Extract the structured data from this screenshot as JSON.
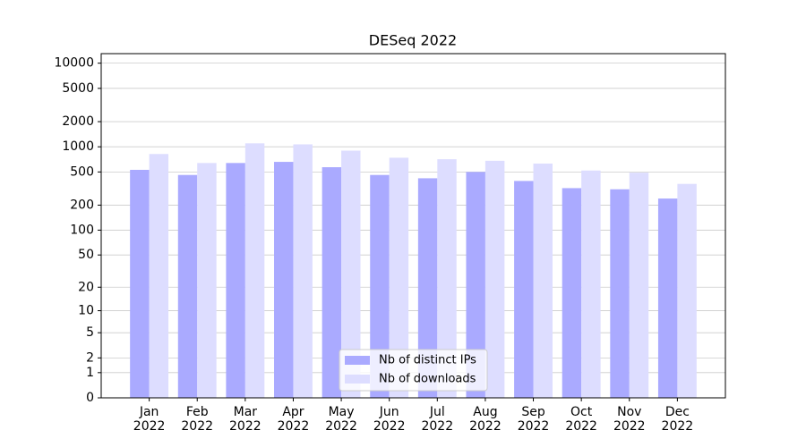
{
  "chart_data": {
    "type": "bar",
    "title": "DESeq 2022",
    "categories": [
      "Jan\n2022",
      "Feb\n2022",
      "Mar\n2022",
      "Apr\n2022",
      "May\n2022",
      "Jun\n2022",
      "Jul\n2022",
      "Aug\n2022",
      "Sep\n2022",
      "Oct\n2022",
      "Nov\n2022",
      "Dec\n2022"
    ],
    "series": [
      {
        "name": "Nb of distinct IPs",
        "color": "#aaaaff",
        "values": [
          530,
          460,
          640,
          660,
          570,
          460,
          420,
          500,
          390,
          320,
          310,
          240
        ]
      },
      {
        "name": "Nb of downloads",
        "color": "#ddddff",
        "values": [
          820,
          640,
          1100,
          1070,
          900,
          740,
          710,
          680,
          630,
          520,
          490,
          360
        ]
      }
    ],
    "yscale": "log1p",
    "ylim": [
      0,
      13000
    ],
    "yticks": [
      0,
      1,
      2,
      5,
      10,
      20,
      50,
      100,
      200,
      500,
      1000,
      2000,
      5000,
      10000
    ],
    "grid": true,
    "legend": "lower center"
  }
}
